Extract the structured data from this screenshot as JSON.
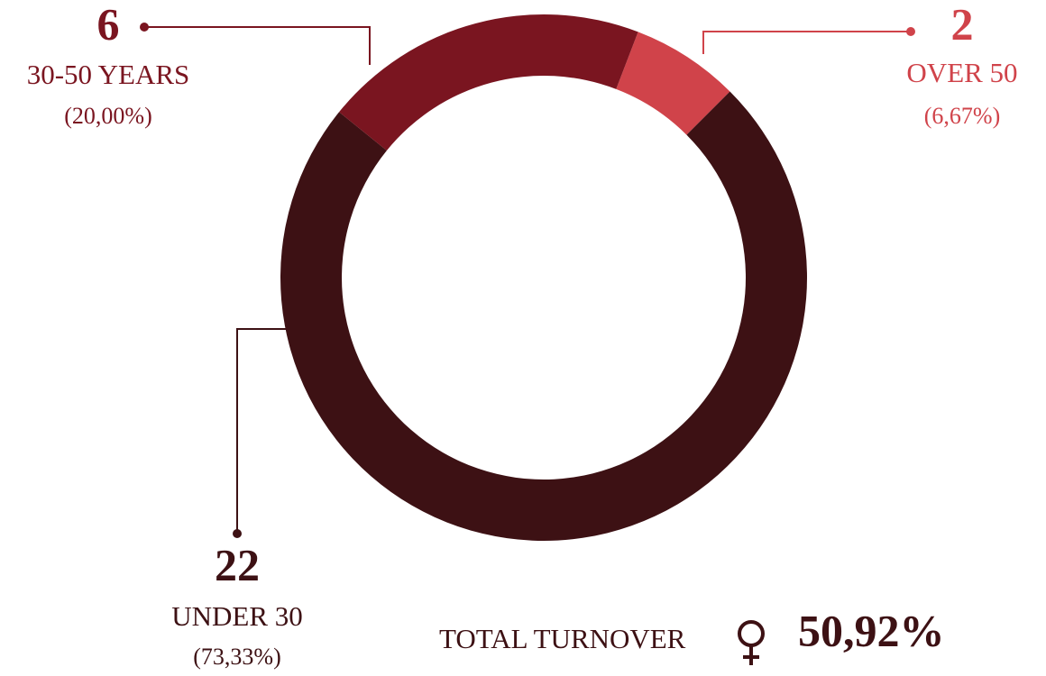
{
  "chart_data": {
    "type": "pie",
    "categories": [
      "UNDER 30",
      "30-50 YEARS",
      "OVER 50"
    ],
    "values": [
      22,
      6,
      2
    ],
    "percent_labels": [
      "(73,33%)",
      "(20,00%)",
      "(6,67%)"
    ],
    "colors": [
      "#3d1114",
      "#7a1520",
      "#d0434a"
    ],
    "total_label": "TOTAL TURNOVER",
    "total_value": "50,92%"
  }
}
